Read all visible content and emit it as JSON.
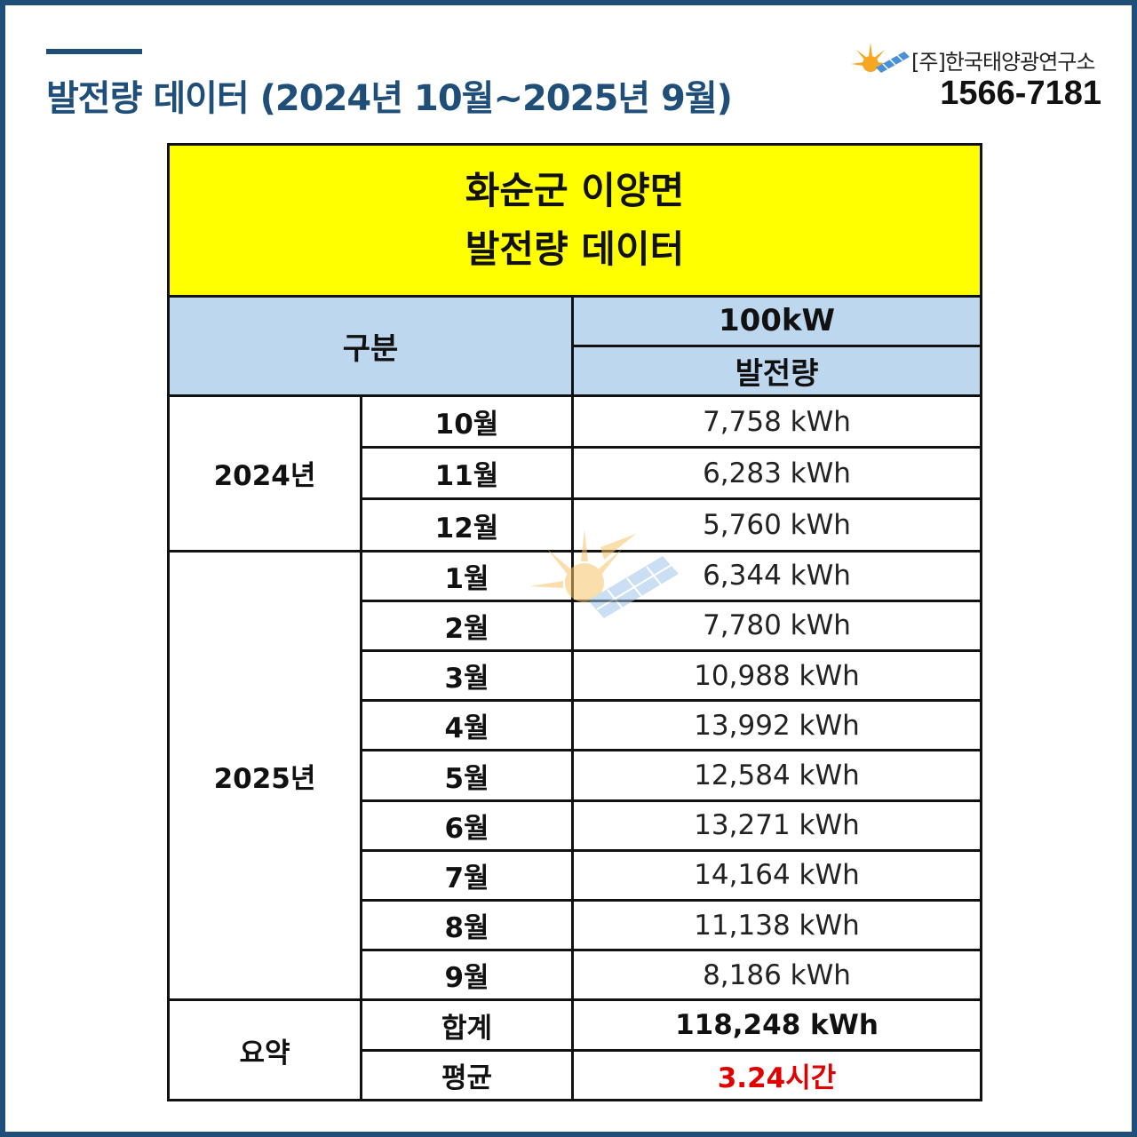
{
  "header": {
    "title": "발전량 데이터 (2024년 10월~2025년 9월)",
    "company": "[주]한국태양광연구소",
    "phone": "1566-7181"
  },
  "colors": {
    "brand": "#1f4e79",
    "highlight": "#ffff00",
    "table_header": "#bdd7ee",
    "average_text": "#e00000"
  },
  "table": {
    "title_line1": "화순군 이양면",
    "title_line2": "발전량 데이터",
    "col_category": "구분",
    "col_capacity": "100kW",
    "col_generation": "발전량",
    "groups": {
      "y2024": "2024년",
      "y2025": "2025년",
      "summary": "요약"
    },
    "rows": [
      {
        "month": "10월",
        "value": "7,758  kWh"
      },
      {
        "month": "11월",
        "value": "6,283  kWh"
      },
      {
        "month": "12월",
        "value": "5,760  kWh"
      },
      {
        "month": "1월",
        "value": "6,344  kWh"
      },
      {
        "month": "2월",
        "value": "7,780  kWh"
      },
      {
        "month": "3월",
        "value": "10,988  kWh"
      },
      {
        "month": "4월",
        "value": "13,992  kWh"
      },
      {
        "month": "5월",
        "value": "12,584  kWh"
      },
      {
        "month": "6월",
        "value": "13,271  kWh"
      },
      {
        "month": "7월",
        "value": "14,164  kWh"
      },
      {
        "month": "8월",
        "value": "11,138  kWh"
      },
      {
        "month": "9월",
        "value": "8,186  kWh"
      }
    ],
    "summary": {
      "total_label": "합계",
      "total_value": "118,248 kWh",
      "avg_label": "평균",
      "avg_value": "3.24시간"
    }
  },
  "icons": [
    "solar-logo-icon",
    "solar-watermark-icon"
  ]
}
